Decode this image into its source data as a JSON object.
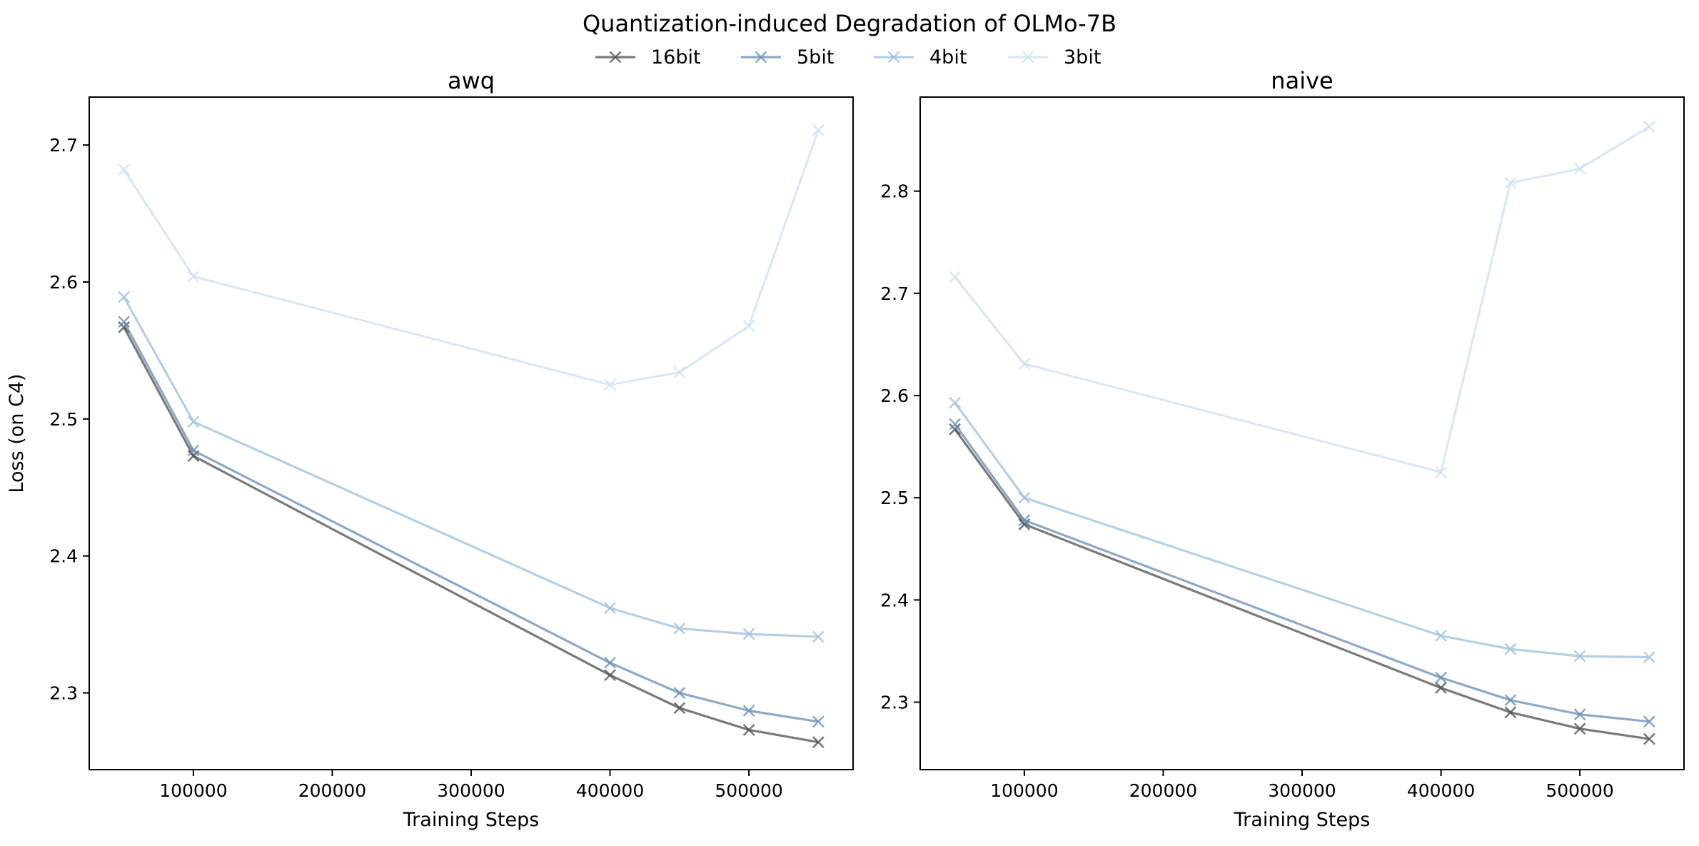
{
  "figure": {
    "title": "Quantization-induced Degradation of OLMo-7B"
  },
  "legend": {
    "placement": "top-center",
    "items": [
      {
        "name": "16bit",
        "color": "#4d4d4d",
        "alpha": 0.75
      },
      {
        "name": "5bit",
        "color": "#6a8bb0",
        "alpha": 0.75
      },
      {
        "name": "4bit",
        "color": "#9dbfda",
        "alpha": 0.75
      },
      {
        "name": "3bit",
        "color": "#cfe0f0",
        "alpha": 0.75
      }
    ]
  },
  "chart_data": [
    {
      "type": "line",
      "title": "awq",
      "xlabel": "Training Steps",
      "ylabel": "Loss (on C4)",
      "marker": "x",
      "grid": false,
      "xlim": [
        25000,
        575000
      ],
      "ylim": [
        2.244,
        2.735
      ],
      "xticks": [
        100000,
        200000,
        300000,
        400000,
        500000
      ],
      "yticks": [
        2.3,
        2.4,
        2.5,
        2.6,
        2.7
      ],
      "x": [
        50000,
        100000,
        400000,
        450000,
        500000,
        550000
      ],
      "series": [
        {
          "name": "16bit",
          "values": [
            2.567,
            2.473,
            2.313,
            2.289,
            2.273,
            2.264
          ]
        },
        {
          "name": "5bit",
          "values": [
            2.571,
            2.477,
            2.322,
            2.3,
            2.287,
            2.279
          ]
        },
        {
          "name": "4bit",
          "values": [
            2.589,
            2.498,
            2.362,
            2.347,
            2.343,
            2.341
          ]
        },
        {
          "name": "3bit",
          "values": [
            2.682,
            2.604,
            2.525,
            2.534,
            2.568,
            2.711
          ]
        }
      ]
    },
    {
      "type": "line",
      "title": "naive",
      "xlabel": "Training Steps",
      "ylabel": "",
      "marker": "x",
      "grid": false,
      "xlim": [
        25000,
        575000
      ],
      "ylim": [
        2.234,
        2.892
      ],
      "xticks": [
        100000,
        200000,
        300000,
        400000,
        500000
      ],
      "yticks": [
        2.3,
        2.4,
        2.5,
        2.6,
        2.7,
        2.8
      ],
      "x": [
        50000,
        100000,
        400000,
        450000,
        500000,
        550000
      ],
      "series": [
        {
          "name": "16bit",
          "values": [
            2.567,
            2.474,
            2.314,
            2.29,
            2.274,
            2.264
          ]
        },
        {
          "name": "5bit",
          "values": [
            2.572,
            2.478,
            2.324,
            2.302,
            2.288,
            2.281
          ]
        },
        {
          "name": "4bit",
          "values": [
            2.593,
            2.5,
            2.365,
            2.352,
            2.345,
            2.344
          ]
        },
        {
          "name": "3bit",
          "values": [
            2.716,
            2.631,
            2.525,
            2.808,
            2.822,
            2.863
          ]
        }
      ]
    }
  ]
}
